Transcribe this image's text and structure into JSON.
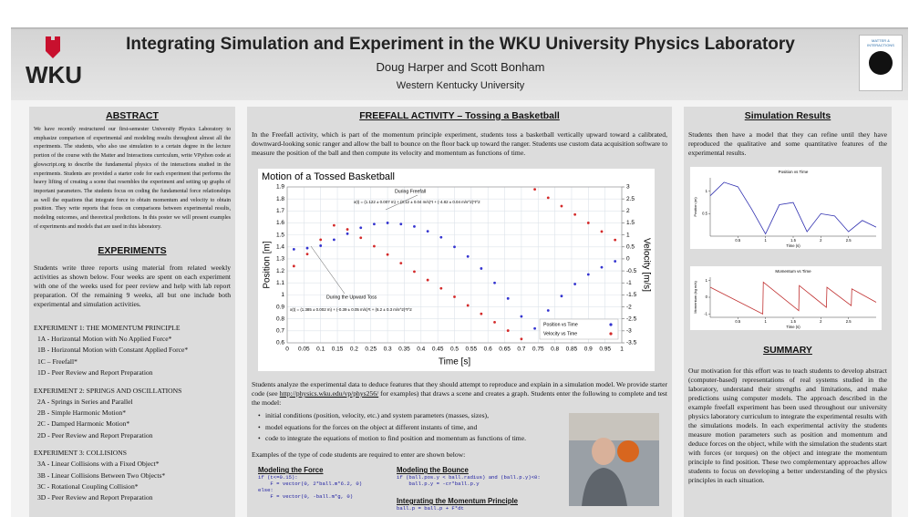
{
  "header": {
    "title": "Integrating Simulation and Experiment in the WKU University Physics Laboratory",
    "authors": "Doug Harper and Scott Bonham",
    "affiliation": "Western Kentucky University",
    "logo": "WKU",
    "badge": "MATTER & INTERACTIONS"
  },
  "abstract": {
    "heading": "ABSTRACT",
    "text": "We have recently restructured our first-semester University Physics Laboratory to emphasize comparison of experimental and modeling results throughout almost all the experiments. The students, who also use simulation to a certain degree in the lecture portion of the course with the Matter and Interactions curriculum, write VPython code at glowscript.org to describe the fundamental physics of the interactions studied in the experiments. Students are provided a starter code for each experiment that performs the heavy lifting of creating a scene that resembles the experiment and setting up graphs of important parameters. The students focus on coding the fundamental force relationships as well the equations that integrate force to obtain momentum and velocity to obtain position. They write reports that focus on comparisons between experimental results, modeling outcomes, and theoretical predictions. In this poster we will present examples of experiments and models that are used in this laboratory."
  },
  "experiments": {
    "heading": "EXPERIMENTS",
    "intro": "Students write three reports using material from related weekly activities as shown below. Four weeks are spent on each experiment with one of the weeks used for peer review and help with lab report preparation. Of the remaining 9 weeks, all but one include both experimental and simulation activities.",
    "groups": [
      {
        "title": "EXPERIMENT 1: THE MOMENTUM PRINCIPLE",
        "items": [
          "1A - Horizontal Motion with No Applied Force*",
          "1B - Horizontal Motion with Constant Applied Force*",
          "1C – Freefall*",
          "1D - Peer Review and Report Preparation"
        ]
      },
      {
        "title": "EXPERIMENT 2: SPRINGS AND OSCILLATIONS",
        "items": [
          "2A - Springs in Series and Parallel",
          "2B - Simple Harmonic Motion*",
          "2C - Damped Harmonic Motion*",
          "2D - Peer Review and Report Preparation"
        ]
      },
      {
        "title": "EXPERIMENT 3: COLLISIONS",
        "items": [
          "3A - Linear Collisions with a Fixed Object*",
          "3B - Linear Collisions Between Two Objects*",
          "3C - Rotational Coupling Collision*",
          "3D - Peer Review and Report Preparation"
        ]
      }
    ]
  },
  "freefall": {
    "heading": "FREEFALL ACTIVITY – Tossing a Basketball",
    "intro": "In the Freefall activity, which is part of the momentum principle experiment, students toss a basketball vertically upward toward a calibrated, downward-looking sonic ranger and allow the ball to bounce on the floor back up toward the ranger. Students use custom data acquisition software to measure the position of the ball and then compute its velocity and momentum as functions of time.",
    "analysis_start": "Students analyze the experimental data to deduce features that they should attempt to reproduce and explain in a simulation model. We provide starter code (see ",
    "link": "http://physics.wku.edu/vp/phys256/",
    "analysis_end": " for examples) that draws a scene and creates a graph. Students enter the following to complete and test the model:",
    "bullets": [
      "initial conditions (position, velocity, etc.) and system parameters (masses, sizes),",
      "model equations for the forces on the object at different instants of time, and",
      "code to integrate the equations of motion to find position and momentum as functions of time."
    ],
    "code_intro": "Examples of the type of code students are required to enter are shown below:",
    "code_blocks": [
      {
        "title": "Modeling the Force",
        "lines": [
          "if (t<=0.15):",
          "    F = vector(0, 2*ball.m*6.2, 0)",
          "else:",
          "    F = vector(0, -ball.m*g, 0)"
        ]
      },
      {
        "title": "Modeling the Bounce",
        "lines": [
          "if (ball.pos.y < ball.radius) and (ball.p.y)<0:",
          "    ball.p.y = -cr*ball.p.y"
        ]
      },
      {
        "title": "Integrating the Momentum Principle",
        "lines": [
          "ball.p = ball.p + F*dt"
        ]
      }
    ]
  },
  "simulation": {
    "heading": "Simulation Results",
    "text": "Students then have a model that they can refine until they have reproduced the qualitative and some quantitative features of the experimental results."
  },
  "summary": {
    "heading": "SUMMARY",
    "text": "Our motivation for this effort was to teach students to develop abstract (computer-based) representations of real systems studied in the laboratory, understand their strengths and limitations, and make predictions using computer models. The approach described in the example freefall experiment has been used throughout our university physics laboratory curriculum to integrate the experimental results with the simulations models. In each experimental activity the students measure motion parameters such as position and momentum and deduce forces on the object, while with the simulation the students start with forces (or torques) on the object and integrate the momentum principle to find position. These two complementary approaches allow students to focus on developing a better understanding of the physics principles in each situation."
  },
  "chart_data": [
    {
      "type": "scatter",
      "title": "Motion of a Tossed Basketball",
      "x_label": "Time [s]",
      "y_label": "Position [m]",
      "y2_label": "Velocity [m/s]",
      "x": [
        0.02,
        0.06,
        0.1,
        0.14,
        0.18,
        0.22,
        0.26,
        0.3,
        0.34,
        0.38,
        0.42,
        0.46,
        0.5,
        0.54,
        0.58,
        0.62,
        0.66,
        0.7,
        0.74,
        0.78,
        0.82,
        0.86,
        0.9,
        0.94,
        0.98
      ],
      "series": [
        {
          "name": "Position vs Time",
          "color": "#3434d0",
          "values": [
            1.38,
            1.39,
            1.41,
            1.46,
            1.51,
            1.56,
            1.59,
            1.6,
            1.59,
            1.57,
            1.53,
            1.48,
            1.4,
            1.32,
            1.22,
            1.1,
            0.97,
            0.82,
            0.72,
            0.87,
            0.99,
            1.09,
            1.17,
            1.23,
            1.28
          ]
        },
        {
          "name": "Velocity vs Time",
          "color": "#d42a2a",
          "axis": "y2",
          "values": [
            -0.3,
            0.2,
            0.8,
            1.4,
            1.23,
            0.88,
            0.53,
            0.18,
            -0.18,
            -0.53,
            -0.88,
            -1.23,
            -1.58,
            -1.94,
            -2.29,
            -2.64,
            -2.99,
            -3.34,
            2.9,
            2.55,
            2.2,
            1.85,
            1.5,
            1.14,
            0.79
          ]
        }
      ],
      "annotations": [
        "During Freefall",
        "During the Upward Toss",
        "x(t) = (1.122 ± 0.007 m) + (3.12 ± 0.04 m/s)*t + (-4.82 ± 0.04 m/s^2)*t^2",
        "x(t) = (1.385 ± 0.002 m) + (-0.39 ± 0.05 m/s)*t + (6.2 ± 0.3 m/s^2)*t^2"
      ],
      "xlim": [
        0,
        1
      ],
      "xticks": [
        0,
        0.05,
        0.1,
        0.15,
        0.2,
        0.25,
        0.3,
        0.35,
        0.4,
        0.45,
        0.5,
        0.55,
        0.6,
        0.65,
        0.7,
        0.75,
        0.8,
        0.85,
        0.9,
        0.95,
        1
      ],
      "ylim": [
        0.6,
        1.9
      ],
      "yticks": [
        0.6,
        0.7,
        0.8,
        0.9,
        1,
        1.1,
        1.2,
        1.3,
        1.4,
        1.5,
        1.6,
        1.7,
        1.8,
        1.9
      ],
      "y2lim": [
        -3.5,
        3
      ],
      "y2ticks": [
        -3.5,
        -3,
        -2.5,
        -2,
        -1.5,
        -1,
        -0.5,
        0,
        0.5,
        1,
        1.5,
        2,
        2.5,
        3
      ],
      "grid": true,
      "legend": "lower right"
    },
    {
      "type": "line",
      "title": "Position vs Time",
      "x_label": "Time (s)",
      "y_label": "Position (m)",
      "color": "#3030b0",
      "x": [
        0,
        0.25,
        0.5,
        0.75,
        1,
        1.25,
        1.5,
        1.75,
        2,
        2.25,
        2.5,
        2.75,
        3
      ],
      "values": [
        0.9,
        1.2,
        1.1,
        0.6,
        0.05,
        0.7,
        0.75,
        0.1,
        0.5,
        0.45,
        0.1,
        0.35,
        0.2
      ],
      "xlim": [
        0,
        3
      ],
      "xticks": [
        0.5,
        1,
        1.5,
        2,
        2.5
      ],
      "ylim": [
        0,
        1.3
      ],
      "yticks": [
        0.5,
        1
      ]
    },
    {
      "type": "line",
      "title": "Momentum vs Time",
      "x_label": "Time (s)",
      "y_label": "Momentum (kg m/s)",
      "color": "#c03030",
      "x": [
        0,
        0.95,
        0.96,
        1.6,
        1.61,
        2.1,
        2.11,
        2.55,
        2.56,
        3
      ],
      "values": [
        0.6,
        -1,
        0.9,
        -0.8,
        0.7,
        -0.6,
        0.6,
        -0.5,
        0.5,
        -0.3
      ],
      "xlim": [
        0,
        3
      ],
      "xticks": [
        0.5,
        1,
        1.5,
        2,
        2.5
      ],
      "ylim": [
        -1.2,
        1.2
      ],
      "yticks": [
        -1,
        0,
        1
      ]
    }
  ]
}
